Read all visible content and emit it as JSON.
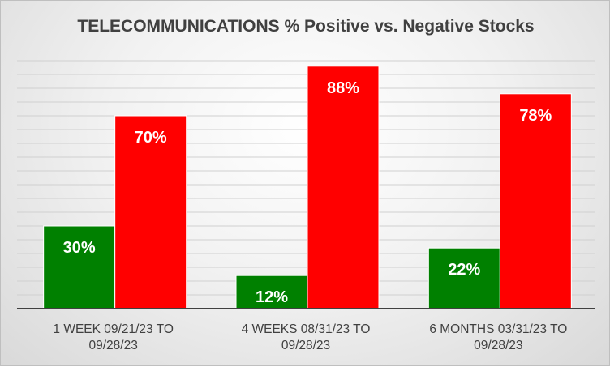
{
  "chart_data": {
    "type": "bar",
    "title": "TELECOMMUNICATIONS % Positive vs. Negative Stocks",
    "categories": [
      "1 WEEK 09/21/23 TO 09/28/23",
      "4 WEEKS 08/31/23 TO 09/28/23",
      "6 MONTHS 03/31/23 TO 09/28/23"
    ],
    "category_lines": [
      [
        "1 WEEK 09/21/23 TO",
        "09/28/23"
      ],
      [
        "4 WEEKS 08/31/23 TO",
        "09/28/23"
      ],
      [
        "6 MONTHS 03/31/23 TO",
        "09/28/23"
      ]
    ],
    "series": [
      {
        "values": [
          30,
          12,
          22
        ],
        "labels": [
          "30%",
          "12%",
          "22%"
        ],
        "color": "#008000"
      },
      {
        "values": [
          70,
          88,
          78
        ],
        "labels": [
          "70%",
          "88%",
          "78%"
        ],
        "color": "#ff0000"
      }
    ],
    "ylim": [
      0,
      90
    ],
    "grid": true,
    "legend": "none",
    "data_label_color": "#ffffff"
  }
}
